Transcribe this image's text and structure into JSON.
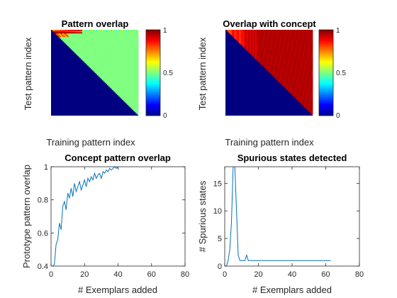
{
  "chart_data": [
    {
      "type": "heatmap",
      "title": "Pattern overlap",
      "xlabel": "Training pattern index",
      "ylabel": "Test pattern index",
      "colormap": "jet",
      "clim": [
        0,
        1
      ],
      "colorbar_ticks": [
        "0",
        "0.5",
        "1"
      ],
      "structure": "upper triangle ~0.5 (cyan), lower triangle 0 (dark blue), first rows mixed 0.7-1",
      "rows": 70,
      "cols": 70
    },
    {
      "type": "heatmap",
      "title": "Overlap with concept",
      "xlabel": "Training pattern index",
      "ylabel": "Test pattern index",
      "colormap": "jet",
      "clim": [
        0,
        1
      ],
      "colorbar_ticks": [
        "0",
        "0.5",
        "1"
      ],
      "structure": "upper triangle 0.75-1 (orange to dark red), lower triangle 0 (dark blue)",
      "rows": 70,
      "cols": 70
    },
    {
      "type": "line",
      "title": "Concept pattern overlap",
      "xlabel": "# Exemplars added",
      "ylabel": "Prototype pattern overlap",
      "xlim": [
        0,
        80
      ],
      "ylim": [
        0.4,
        1
      ],
      "xticks": [
        0,
        20,
        40,
        60,
        80
      ],
      "yticks": [
        0.4,
        0.6,
        0.8,
        1
      ],
      "color": "#0072BD",
      "x": [
        1,
        2,
        3,
        4,
        5,
        6,
        7,
        8,
        9,
        10,
        11,
        12,
        13,
        14,
        15,
        16,
        17,
        18,
        19,
        20,
        21,
        22,
        23,
        24,
        25,
        26,
        27,
        28,
        29,
        30,
        31,
        32,
        33,
        34,
        35,
        36,
        37,
        38,
        39,
        40
      ],
      "y": [
        0.4,
        0.41,
        0.53,
        0.56,
        0.66,
        0.62,
        0.76,
        0.79,
        0.74,
        0.84,
        0.81,
        0.87,
        0.82,
        0.9,
        0.85,
        0.88,
        0.91,
        0.86,
        0.89,
        0.92,
        0.88,
        0.93,
        0.91,
        0.94,
        0.92,
        0.96,
        0.93,
        0.95,
        0.96,
        0.93,
        0.97,
        0.96,
        0.98,
        0.97,
        0.99,
        0.98,
        0.99,
        1.0,
        0.99,
        1.0
      ]
    },
    {
      "type": "line",
      "title": "Spurious states detected",
      "xlabel": "# Exemplars added",
      "ylabel": "# Spurious states",
      "xlim": [
        0,
        80
      ],
      "ylim": [
        0,
        18
      ],
      "xticks": [
        0,
        20,
        40,
        60,
        80
      ],
      "yticks": [
        0,
        5,
        10,
        15
      ],
      "color": "#0072BD",
      "x": [
        1,
        2,
        3,
        4,
        5,
        6,
        7,
        8,
        9,
        10,
        11,
        12,
        13,
        14,
        15,
        20,
        30,
        40,
        50,
        60,
        63
      ],
      "y": [
        0,
        1,
        3,
        8,
        18,
        18,
        10,
        2,
        1,
        1,
        1,
        1,
        2,
        1,
        1,
        1,
        1,
        1,
        1,
        1,
        1
      ]
    }
  ]
}
